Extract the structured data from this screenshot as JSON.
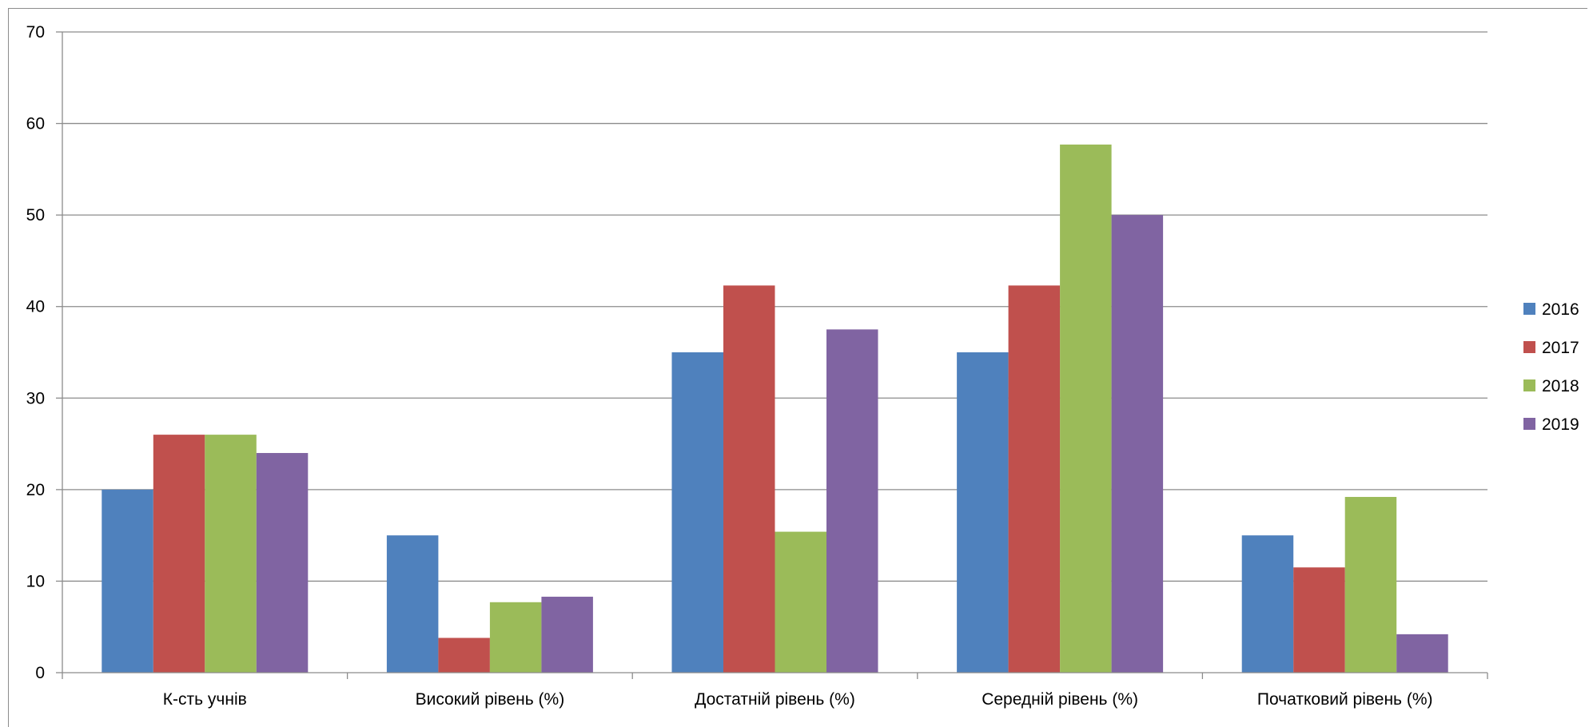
{
  "chart_data": {
    "type": "bar",
    "title": "",
    "xlabel": "",
    "ylabel": "",
    "ylim": [
      0,
      70
    ],
    "yticks": [
      0,
      10,
      20,
      30,
      40,
      50,
      60,
      70
    ],
    "grid": true,
    "legend_position": "right",
    "categories": [
      "К-сть учнів",
      "Високий рівень (%)",
      "Достатній рівень (%)",
      "Середній рівень (%)",
      "Початковий рівень (%)"
    ],
    "series": [
      {
        "name": "2016",
        "color": "#4F81BD",
        "values": [
          20,
          15,
          35,
          35,
          15
        ]
      },
      {
        "name": "2017",
        "color": "#C0504D",
        "values": [
          26,
          3.8,
          42.3,
          42.3,
          11.5
        ]
      },
      {
        "name": "2018",
        "color": "#9BBB59",
        "values": [
          26,
          7.7,
          15.4,
          57.7,
          19.2
        ]
      },
      {
        "name": "2019",
        "color": "#8064A2",
        "values": [
          24,
          8.3,
          37.5,
          50,
          4.2
        ]
      }
    ]
  }
}
